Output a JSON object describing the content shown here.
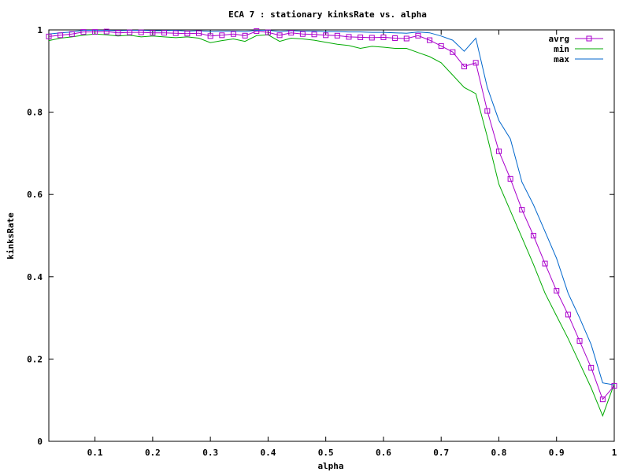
{
  "chart_data": {
    "type": "line",
    "title": "ECA 7 : stationary kinksRate vs. alpha",
    "xlabel": "alpha",
    "ylabel": "kinksRate",
    "xlim": [
      0.02,
      1.0
    ],
    "ylim": [
      0,
      1
    ],
    "xticks": [
      "0.1",
      "0.2",
      "0.3",
      "0.4",
      "0.5",
      "0.6",
      "0.7",
      "0.8",
      "0.9",
      "1"
    ],
    "yticks": [
      "0",
      "0.2",
      "0.4",
      "0.6",
      "0.8",
      "1"
    ],
    "legend_position": "top-right",
    "grid": false,
    "x": [
      0.02,
      0.04,
      0.06,
      0.08,
      0.1,
      0.12,
      0.14,
      0.16,
      0.18,
      0.2,
      0.22,
      0.24,
      0.26,
      0.28,
      0.3,
      0.32,
      0.34,
      0.36,
      0.38,
      0.4,
      0.42,
      0.44,
      0.46,
      0.48,
      0.5,
      0.52,
      0.54,
      0.56,
      0.58,
      0.6,
      0.62,
      0.64,
      0.66,
      0.68,
      0.7,
      0.72,
      0.74,
      0.76,
      0.78,
      0.8,
      0.82,
      0.84,
      0.86,
      0.88,
      0.9,
      0.92,
      0.94,
      0.96,
      0.98,
      1.0
    ],
    "series": [
      {
        "name": "avrg",
        "color": "#aa00cc",
        "markers": true,
        "values": [
          0.984,
          0.987,
          0.99,
          0.995,
          0.995,
          0.996,
          0.993,
          0.994,
          0.994,
          0.993,
          0.993,
          0.992,
          0.991,
          0.992,
          0.985,
          0.987,
          0.99,
          0.986,
          0.997,
          0.994,
          0.987,
          0.993,
          0.99,
          0.989,
          0.987,
          0.986,
          0.983,
          0.982,
          0.981,
          0.982,
          0.98,
          0.979,
          0.986,
          0.975,
          0.961,
          0.946,
          0.911,
          0.92,
          0.803,
          0.705,
          0.638,
          0.563,
          0.5,
          0.432,
          0.366,
          0.308,
          0.244,
          0.179,
          0.102,
          0.135
        ]
      },
      {
        "name": "min",
        "color": "#00aa00",
        "markers": false,
        "values": [
          0.974,
          0.98,
          0.983,
          0.987,
          0.99,
          0.988,
          0.985,
          0.987,
          0.983,
          0.985,
          0.983,
          0.981,
          0.983,
          0.98,
          0.969,
          0.974,
          0.978,
          0.972,
          0.986,
          0.988,
          0.972,
          0.98,
          0.978,
          0.975,
          0.97,
          0.965,
          0.962,
          0.955,
          0.96,
          0.958,
          0.955,
          0.955,
          0.945,
          0.935,
          0.92,
          0.89,
          0.86,
          0.845,
          0.74,
          0.625,
          0.56,
          0.495,
          0.43,
          0.36,
          0.305,
          0.25,
          0.19,
          0.13,
          0.062,
          0.14
        ]
      },
      {
        "name": "max",
        "color": "#0066cc",
        "markers": false,
        "values": [
          0.99,
          0.993,
          0.995,
          0.999,
          0.999,
          0.999,
          0.998,
          0.999,
          0.999,
          0.998,
          0.998,
          0.999,
          0.997,
          0.998,
          0.996,
          0.997,
          0.997,
          0.996,
          0.999,
          0.999,
          0.996,
          0.998,
          0.997,
          0.997,
          0.996,
          0.996,
          0.995,
          0.995,
          0.994,
          0.994,
          0.993,
          0.992,
          0.995,
          0.993,
          0.985,
          0.975,
          0.948,
          0.98,
          0.86,
          0.78,
          0.735,
          0.63,
          0.575,
          0.51,
          0.445,
          0.36,
          0.3,
          0.235,
          0.142,
          0.137
        ]
      }
    ]
  }
}
